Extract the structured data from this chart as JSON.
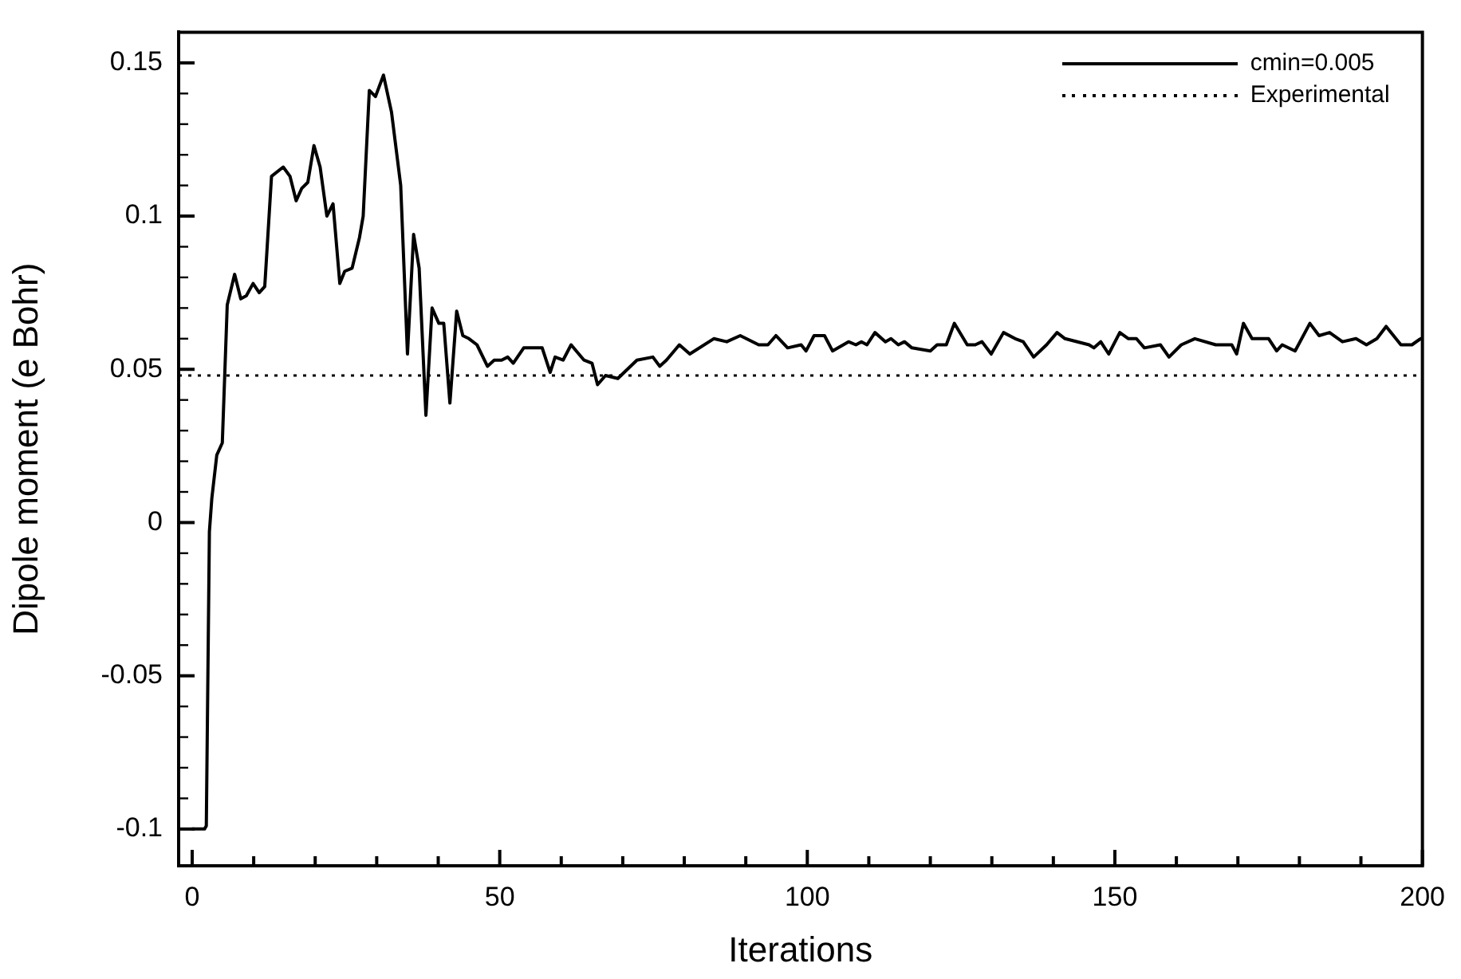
{
  "chart_data": {
    "type": "line",
    "xlabel": "Iterations",
    "ylabel": "Dipole moment (e Bohr)",
    "xlim": [
      -2.2,
      200
    ],
    "ylim": [
      -0.112,
      0.16
    ],
    "xticks": [
      0,
      {
        "value": 10,
        "label": null
      },
      {
        "value": 20,
        "label": null
      },
      {
        "value": 30,
        "label": null
      },
      {
        "value": 40,
        "label": null
      },
      50,
      {
        "value": 60,
        "label": null
      },
      {
        "value": 70,
        "label": null
      },
      {
        "value": 80,
        "label": null
      },
      {
        "value": 90,
        "label": null
      },
      100,
      {
        "value": 110,
        "label": null
      },
      {
        "value": 120,
        "label": null
      },
      {
        "value": 130,
        "label": null
      },
      {
        "value": 140,
        "label": null
      },
      150,
      {
        "value": 160,
        "label": null
      },
      {
        "value": 170,
        "label": null
      },
      {
        "value": 180,
        "label": null
      },
      {
        "value": 190,
        "label": null
      },
      200
    ],
    "yticks": [
      -0.1,
      {
        "value": -0.09,
        "label": null
      },
      {
        "value": -0.08,
        "label": null
      },
      {
        "value": -0.07,
        "label": null
      },
      {
        "value": -0.06,
        "label": null
      },
      -0.05,
      {
        "value": -0.04,
        "label": null
      },
      {
        "value": -0.03,
        "label": null
      },
      {
        "value": -0.02,
        "label": null
      },
      {
        "value": -0.01,
        "label": null
      },
      0,
      {
        "value": 0.01,
        "label": null
      },
      {
        "value": 0.02,
        "label": null
      },
      {
        "value": 0.03,
        "label": null
      },
      {
        "value": 0.04,
        "label": null
      },
      0.05,
      {
        "value": 0.06,
        "label": null
      },
      {
        "value": 0.07,
        "label": null
      },
      {
        "value": 0.08,
        "label": null
      },
      {
        "value": 0.09,
        "label": null
      },
      0.1,
      {
        "value": 0.11,
        "label": null
      },
      {
        "value": 0.12,
        "label": null
      },
      {
        "value": 0.13,
        "label": null
      },
      {
        "value": 0.14,
        "label": null
      },
      0.15
    ],
    "grid": false,
    "legend": "top right",
    "marker": "none",
    "line_style": "solid",
    "ref_lines": [
      {
        "axis": "y",
        "value": 0.048,
        "label": "Experimental",
        "color": "#000000",
        "line_style": "dotted"
      }
    ],
    "series": [
      {
        "name": "cmin=0.005",
        "color": "#000000",
        "x": [
          0,
          2,
          2.3,
          2.8,
          3.2,
          4.0,
          4.9,
          5.7,
          6.9,
          7.9,
          8.8,
          9.9,
          10.9,
          11.8,
          12.9,
          14.8,
          15.9,
          16.9,
          17.8,
          18.8,
          19.8,
          20.8,
          21.9,
          22.9,
          24.0,
          24.8,
          26.0,
          27.2,
          27.8,
          28.8,
          29.8,
          31.1,
          32.4,
          33.9,
          35.0,
          36.0,
          36.9,
          38.0,
          39.0,
          40.1,
          40.9,
          41.9,
          43.0,
          44.0,
          45.0,
          46.3,
          48.0,
          49.1,
          50.3,
          51.3,
          52.2,
          53.9,
          56.9,
          58.2,
          59.0,
          60.3,
          61.6,
          63.7,
          65.0,
          65.9,
          67.2,
          69.2,
          72.3,
          74.9,
          76.0,
          77.1,
          79.2,
          80.9,
          84.8,
          86.9,
          89.1,
          92.1,
          93.6,
          94.9,
          96.8,
          99.0,
          99.8,
          101.1,
          102.8,
          104.1,
          106.7,
          107.9,
          108.8,
          109.7,
          111.0,
          112.7,
          113.6,
          114.8,
          115.8,
          117.0,
          120.0,
          121.1,
          122.6,
          123.9,
          126.0,
          127.3,
          128.4,
          129.9,
          131.9,
          133.8,
          135.1,
          136.8,
          138.9,
          140.6,
          141.9,
          145.8,
          146.6,
          147.7,
          149.0,
          150.8,
          152.2,
          153.5,
          154.8,
          157.4,
          158.8,
          160.8,
          163.0,
          166.4,
          169.0,
          169.8,
          170.9,
          172.3,
          175.0,
          176.3,
          177.2,
          179.3,
          181.7,
          183.2,
          184.9,
          187.0,
          189.2,
          190.9,
          192.6,
          194.1,
          196.5,
          198.3,
          199.7
        ],
        "values": [
          -0.1,
          -0.1,
          -0.099,
          -0.003,
          0.008,
          0.022,
          0.026,
          0.071,
          0.081,
          0.073,
          0.074,
          0.078,
          0.075,
          0.077,
          0.113,
          0.116,
          0.113,
          0.105,
          0.109,
          0.111,
          0.123,
          0.116,
          0.1,
          0.104,
          0.078,
          0.082,
          0.083,
          0.093,
          0.1,
          0.141,
          0.139,
          0.146,
          0.134,
          0.11,
          0.055,
          0.094,
          0.083,
          0.035,
          0.07,
          0.065,
          0.065,
          0.039,
          0.069,
          0.061,
          0.06,
          0.058,
          0.051,
          0.053,
          0.053,
          0.054,
          0.052,
          0.057,
          0.057,
          0.049,
          0.054,
          0.053,
          0.058,
          0.053,
          0.052,
          0.045,
          0.048,
          0.047,
          0.053,
          0.054,
          0.051,
          0.053,
          0.058,
          0.055,
          0.06,
          0.059,
          0.061,
          0.058,
          0.058,
          0.061,
          0.057,
          0.058,
          0.056,
          0.061,
          0.061,
          0.056,
          0.059,
          0.058,
          0.059,
          0.058,
          0.062,
          0.059,
          0.06,
          0.058,
          0.059,
          0.057,
          0.056,
          0.058,
          0.058,
          0.065,
          0.058,
          0.058,
          0.059,
          0.055,
          0.062,
          0.06,
          0.059,
          0.054,
          0.058,
          0.062,
          0.06,
          0.058,
          0.057,
          0.059,
          0.055,
          0.062,
          0.06,
          0.06,
          0.057,
          0.058,
          0.054,
          0.058,
          0.06,
          0.058,
          0.058,
          0.055,
          0.065,
          0.06,
          0.06,
          0.056,
          0.058,
          0.056,
          0.065,
          0.061,
          0.062,
          0.059,
          0.06,
          0.058,
          0.06,
          0.064,
          0.058,
          0.058,
          0.06
        ]
      }
    ]
  }
}
